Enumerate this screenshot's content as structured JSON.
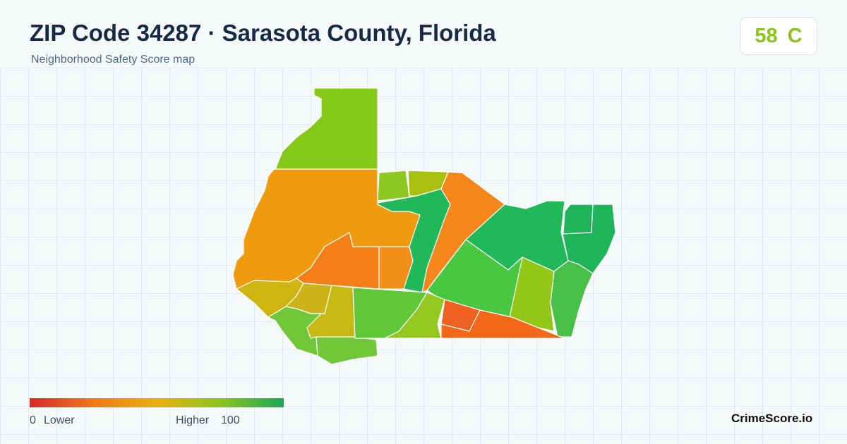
{
  "header": {
    "title": "ZIP Code 34287 · Sarasota County, Florida",
    "subtitle": "Neighborhood Safety Score map"
  },
  "score": {
    "value": 58,
    "grade": "C"
  },
  "legend": {
    "min": 0,
    "min_label": "Lower",
    "max_label": "Higher",
    "max": 100
  },
  "brand": "CrimeScore.io"
}
